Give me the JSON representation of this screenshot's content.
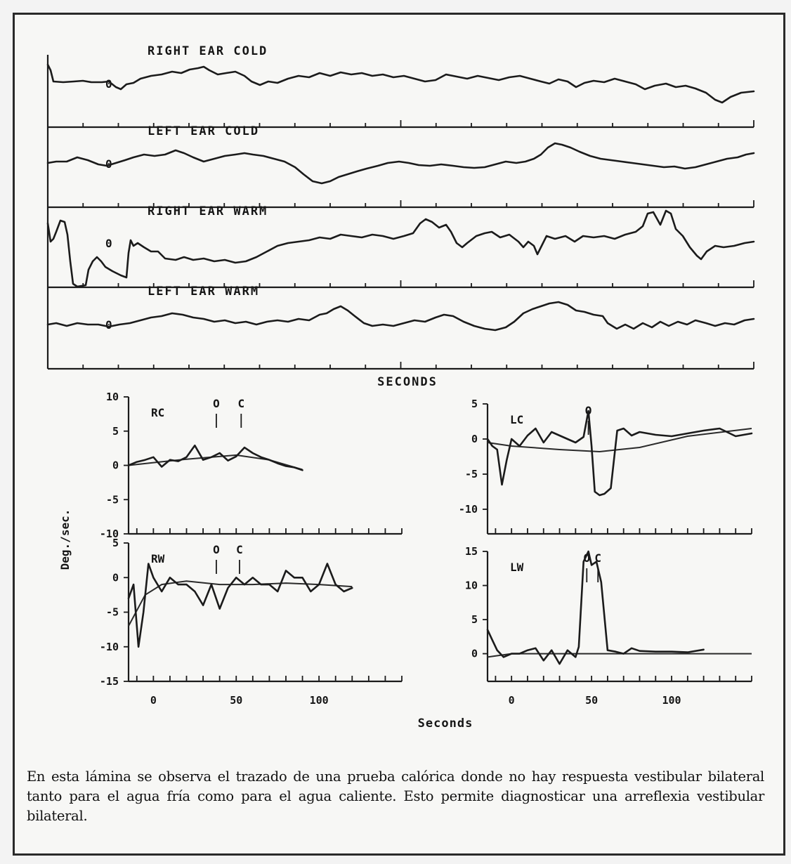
{
  "traces": {
    "xlabel": "SECONDS",
    "panels": [
      {
        "id": "rc",
        "title": "RIGHT EAR COLD",
        "zero_label": "0"
      },
      {
        "id": "lc",
        "title": "LEFT EAR COLD",
        "zero_label": "0"
      },
      {
        "id": "rw",
        "title": "RIGHT EAR WARM",
        "zero_label": "0"
      },
      {
        "id": "lw",
        "title": "LEFT EAR WARM",
        "zero_label": "0"
      }
    ]
  },
  "chart_data": [
    {
      "type": "line",
      "panel": "RC",
      "title": "RC",
      "ylabel": "Deg./sec.",
      "xlim": [
        -15,
        150
      ],
      "ylim": [
        -10,
        10
      ],
      "yticks": [
        10,
        5,
        0,
        -5,
        -10
      ],
      "markers": [
        {
          "label": "O",
          "x": 38
        },
        {
          "label": "C",
          "x": 53
        }
      ],
      "series": [
        {
          "x": [
            -15,
            -10,
            -5,
            0,
            5,
            10,
            15,
            20,
            25,
            30,
            35,
            40,
            45,
            50,
            55,
            60,
            65,
            70,
            75,
            80,
            85,
            90
          ],
          "y": [
            0,
            0.5,
            0.8,
            1.2,
            -0.2,
            0.8,
            0.6,
            1.2,
            2.9,
            0.8,
            1.2,
            1.8,
            0.7,
            1.3,
            2.6,
            1.8,
            1.2,
            0.8,
            0.3,
            -0.1,
            -0.3,
            -0.7
          ]
        }
      ],
      "fit": {
        "x": [
          -15,
          0,
          20,
          50,
          70,
          90
        ],
        "y": [
          0,
          0.4,
          0.9,
          1.5,
          0.8,
          -0.6
        ]
      }
    },
    {
      "type": "line",
      "panel": "LC",
      "title": "LC",
      "xlim": [
        -15,
        150
      ],
      "ylim": [
        -10,
        5
      ],
      "yticks": [
        5,
        0,
        -5,
        -10
      ],
      "markers": [
        {
          "label": "O",
          "x": 48
        }
      ],
      "series": [
        {
          "x": [
            -15,
            -12,
            -9,
            -6,
            -3,
            0,
            5,
            10,
            15,
            20,
            25,
            30,
            35,
            40,
            45,
            48,
            50,
            52,
            55,
            58,
            62,
            66,
            70,
            75,
            80,
            90,
            100,
            110,
            120,
            130,
            140,
            150
          ],
          "y": [
            0,
            -1,
            -1.5,
            -6.5,
            -3,
            0,
            -1,
            0.5,
            1.5,
            -0.5,
            1,
            0.5,
            0,
            -0.5,
            0.3,
            4,
            -1,
            -7.5,
            -8,
            -7.8,
            -7,
            1.2,
            1.5,
            0.5,
            1,
            0.6,
            0.4,
            0.8,
            1.2,
            1.5,
            0.4,
            0.8
          ]
        }
      ],
      "fit": {
        "x": [
          -15,
          0,
          30,
          55,
          80,
          110,
          150
        ],
        "y": [
          -0.5,
          -1,
          -1.5,
          -1.8,
          -1.2,
          0.4,
          1.5
        ]
      }
    },
    {
      "type": "line",
      "panel": "RW",
      "title": "RW",
      "xlim": [
        -15,
        150
      ],
      "ylim": [
        -15,
        5
      ],
      "yticks": [
        5,
        0,
        -5,
        -10,
        -15
      ],
      "markers": [
        {
          "label": "O",
          "x": 38
        },
        {
          "label": "C",
          "x": 52
        }
      ],
      "series": [
        {
          "x": [
            -15,
            -12,
            -9,
            -6,
            -3,
            0,
            5,
            10,
            15,
            20,
            25,
            30,
            35,
            40,
            45,
            50,
            55,
            60,
            65,
            70,
            75,
            80,
            85,
            90,
            95,
            100,
            105,
            110,
            115,
            120
          ],
          "y": [
            -3,
            -1,
            -10,
            -5,
            2,
            0,
            -2,
            0,
            -1,
            -1,
            -2,
            -4,
            -1,
            -4.5,
            -1.5,
            0,
            -1,
            0,
            -1,
            -1,
            -2,
            1,
            0,
            0,
            -2,
            -1,
            2,
            -1,
            -2,
            -1.5
          ]
        }
      ],
      "fit": {
        "x": [
          -15,
          -5,
          5,
          20,
          40,
          60,
          80,
          100,
          120
        ],
        "y": [
          -7,
          -2.5,
          -1,
          -0.5,
          -1,
          -1,
          -0.8,
          -1,
          -1.3
        ]
      }
    },
    {
      "type": "line",
      "panel": "LW",
      "title": "LW",
      "xlabel": "Seconds",
      "xlim": [
        -15,
        150
      ],
      "ylim": [
        -2,
        15
      ],
      "yticks": [
        15,
        10,
        5,
        0
      ],
      "markers": [
        {
          "label": "O",
          "x": 47
        },
        {
          "label": "C",
          "x": 54
        }
      ],
      "series": [
        {
          "x": [
            -15,
            -12,
            -9,
            -5,
            0,
            5,
            10,
            15,
            20,
            25,
            30,
            35,
            40,
            42,
            45,
            48,
            50,
            53,
            56,
            60,
            65,
            70,
            75,
            80,
            90,
            100,
            110,
            120
          ],
          "y": [
            3.5,
            2,
            0.5,
            -0.5,
            0,
            0,
            0.5,
            0.8,
            -1,
            0.5,
            -1.5,
            0.5,
            -0.5,
            1,
            13.5,
            15,
            13,
            13.5,
            10.5,
            0.5,
            0.3,
            0,
            0.8,
            0.4,
            0.3,
            0.3,
            0.2,
            0.6
          ]
        }
      ],
      "fit": {
        "x": [
          -15,
          0,
          150
        ],
        "y": [
          -0.5,
          0,
          0
        ]
      }
    }
  ],
  "caption": "En esta lámina se observa el trazado de una prueba calórica donde no hay respuesta vestibular bilateral tanto para el agua fría como para el agua caliente. Esto permite diagnosticar una arreflexia vestibular bilateral."
}
